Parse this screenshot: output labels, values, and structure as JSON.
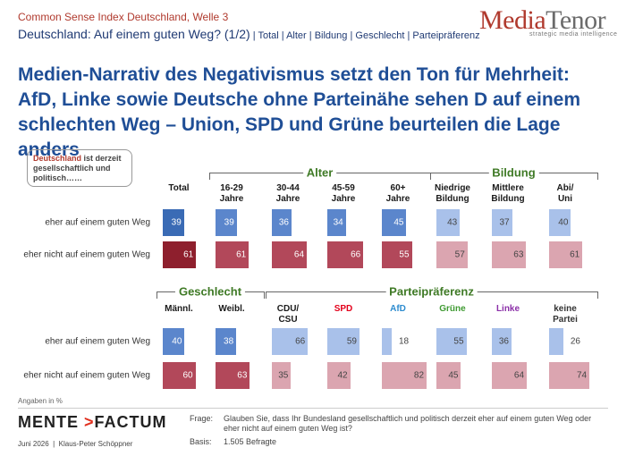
{
  "header": {
    "kicker": "Common Sense Index Deutschland, Welle 3",
    "subtitle": "Deutschland: Auf einem guten Weg? (1/2)",
    "nav": [
      "Total",
      "Alter",
      "Bildung",
      "Geschlecht",
      "Parteipräferenz"
    ],
    "logo": {
      "part1": "Media",
      "part2": "Tenor",
      "tagline": "strategic media intelligence"
    }
  },
  "headline": [
    "Medien-Narrativ des Negativismus setzt den Ton für Mehrheit:",
    "AfD, Linke sowie Deutsche ohne Parteinähe sehen D auf einem",
    "schlechten Weg – Union, SPD und Grüne beurteilen die Lage anders"
  ],
  "bubble": {
    "highlight": "Deutschland",
    "text": " ist derzeit gesellschaftlich und politisch……"
  },
  "chart_data": [
    {
      "type": "bar",
      "categories": [
        "Total",
        "16-29\nJahre",
        "30-44\nJahre",
        "45-59\nJahre",
        "60+\nJahre",
        "Niedrige\nBildung",
        "Mittlere\nBildung",
        "Abi/\nUni"
      ],
      "category_colors": [
        "#1a1a1a",
        "#1a1a1a",
        "#1a1a1a",
        "#1a1a1a",
        "#1a1a1a",
        "#1a1a1a",
        "#1a1a1a",
        "#1a1a1a"
      ],
      "groups": [
        {
          "name": "Alter",
          "span": [
            1,
            4
          ]
        },
        {
          "name": "Bildung",
          "span": [
            5,
            7
          ]
        }
      ],
      "series": [
        {
          "name": "eher auf einem guten Weg",
          "colors": [
            "#3a6bb5",
            "#5b86cc",
            "#5b86cc",
            "#5b86cc",
            "#5b86cc",
            "#a9c1ea",
            "#a9c1ea",
            "#a9c1ea"
          ],
          "values": [
            39,
            39,
            36,
            34,
            45,
            43,
            37,
            40
          ]
        },
        {
          "name": "eher nicht auf einem guten Weg",
          "colors": [
            "#8e1f2d",
            "#b2485a",
            "#b2485a",
            "#b2485a",
            "#b2485a",
            "#dba5b0",
            "#dba5b0",
            "#dba5b0"
          ],
          "values": [
            61,
            61,
            64,
            66,
            55,
            57,
            63,
            61
          ]
        }
      ]
    },
    {
      "type": "bar",
      "categories": [
        "Männl.",
        "Weibl.",
        "CDU/\nCSU",
        "SPD",
        "AfD",
        "Grüne",
        "Linke",
        "keine\nPartei"
      ],
      "category_colors": [
        "#1a1a1a",
        "#1a1a1a",
        "#1a1a1a",
        "#e3001b",
        "#2e8ccf",
        "#3f9a32",
        "#8b2fa8",
        "#333333"
      ],
      "groups": [
        {
          "name": "Geschlecht",
          "span": [
            0,
            1
          ]
        },
        {
          "name": "Parteipräferenz",
          "span": [
            2,
            7
          ]
        }
      ],
      "series": [
        {
          "name": "eher auf einem guten Weg",
          "colors": [
            "#5b86cc",
            "#5b86cc",
            "#a9c1ea",
            "#a9c1ea",
            "#a9c1ea",
            "#a9c1ea",
            "#a9c1ea",
            "#a9c1ea"
          ],
          "values": [
            40,
            38,
            66,
            59,
            18,
            55,
            36,
            26
          ]
        },
        {
          "name": "eher nicht auf einem guten Weg",
          "colors": [
            "#b2485a",
            "#b2485a",
            "#dba5b0",
            "#dba5b0",
            "#dba5b0",
            "#dba5b0",
            "#dba5b0",
            "#dba5b0"
          ],
          "values": [
            60,
            63,
            35,
            42,
            82,
            45,
            64,
            74
          ]
        }
      ]
    }
  ],
  "footer": {
    "unit_note": "Angaben in %",
    "brand": {
      "left": "MENTE",
      "arrow": ">",
      "right": "FACTUM"
    },
    "date_author": "Juni 2026  |  Klaus-Peter Schöppner",
    "question_label": "Frage:",
    "question": "Glauben Sie, dass Ihr Bundesland gesellschaftlich und politisch derzeit eher auf einem guten Weg oder eher nicht auf einem guten Weg ist?",
    "basis_label": "Basis:",
    "basis": "1.505 Befragte"
  }
}
